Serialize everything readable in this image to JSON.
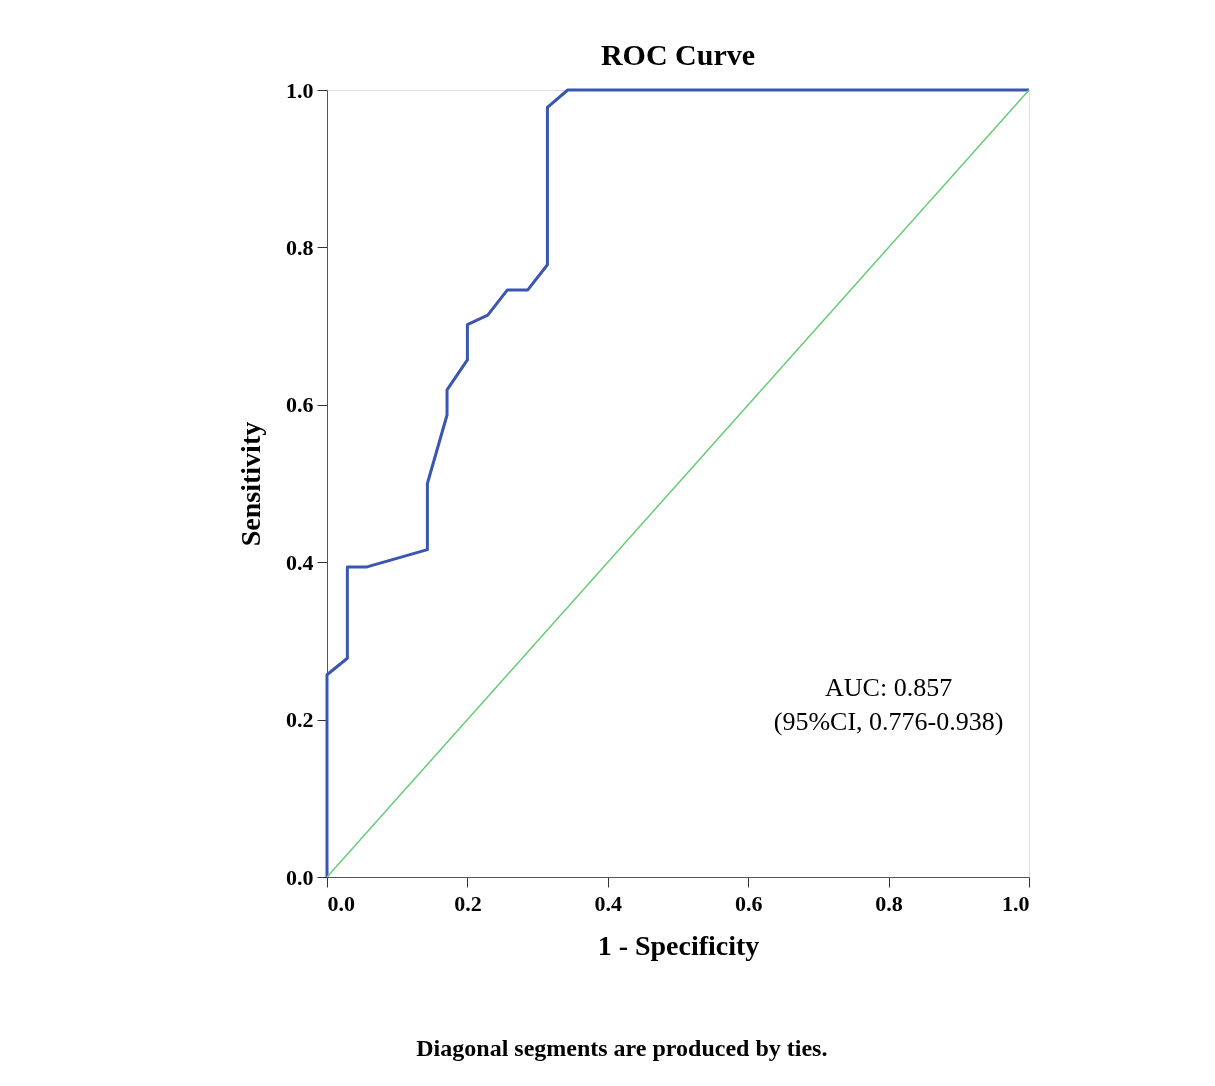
{
  "chart_data": {
    "type": "line",
    "title": "ROC Curve",
    "xlabel": "1 - Specificity",
    "ylabel": "Sensitivity",
    "xlim": [
      0,
      1
    ],
    "ylim": [
      0,
      1
    ],
    "xticks": [
      {
        "value": 0,
        "label": "0.0"
      },
      {
        "value": 0.2,
        "label": "0.2"
      },
      {
        "value": 0.4,
        "label": "0.4"
      },
      {
        "value": 0.6,
        "label": "0.6"
      },
      {
        "value": 0.8,
        "label": "0.8"
      },
      {
        "value": 1,
        "label": "1.0"
      }
    ],
    "yticks": [
      {
        "value": 0,
        "label": "0.0"
      },
      {
        "value": 0.2,
        "label": "0.2"
      },
      {
        "value": 0.4,
        "label": "0.4"
      },
      {
        "value": 0.6,
        "label": "0.6"
      },
      {
        "value": 0.8,
        "label": "0.8"
      },
      {
        "value": 1,
        "label": "1.0"
      }
    ],
    "grid": false,
    "marker": "none",
    "line_style": "solid",
    "series": [
      {
        "color": "#3a56b0",
        "x": [
          0,
          0,
          0.029,
          0.029,
          0.057,
          0.143,
          0.143,
          0.171,
          0.171,
          0.2,
          0.2,
          0.229,
          0.257,
          0.286,
          0.314,
          0.314,
          0.343,
          1
        ],
        "values": [
          0,
          0.257,
          0.278,
          0.394,
          0.394,
          0.416,
          0.5,
          0.587,
          0.619,
          0.657,
          0.702,
          0.714,
          0.746,
          0.746,
          0.778,
          0.978,
          1,
          1
        ]
      },
      {
        "color": "#66cc77",
        "x": [
          0,
          1
        ],
        "values": [
          0,
          1
        ]
      }
    ],
    "annotations": [
      "AUC: 0.857\n(95%CI, 0.776-0.938)",
      "Diagonal segments are produced by ties."
    ]
  }
}
